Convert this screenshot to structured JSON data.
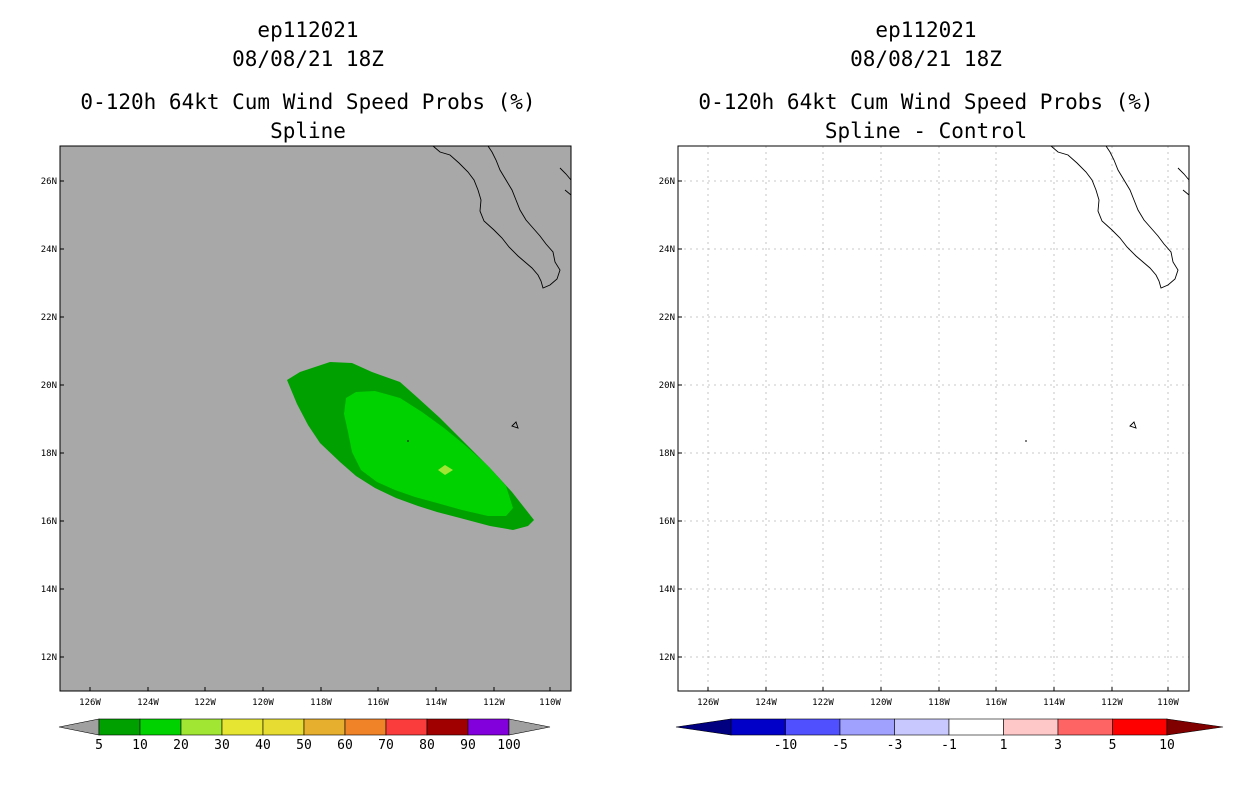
{
  "left_panel": {
    "title_line1": "ep112021",
    "title_line2": "08/08/21 18Z",
    "title_line3": "0-120h 64kt Cum Wind Speed Probs (%)",
    "title_line4": "Spline",
    "background_color": "#a8a8a8",
    "contour_colors": [
      "#00a000",
      "#00d200",
      "#a0e632"
    ],
    "colorbar": {
      "labels": [
        "5",
        "10",
        "20",
        "30",
        "40",
        "50",
        "60",
        "70",
        "80",
        "90",
        "100"
      ],
      "colors": [
        "#00a000",
        "#00d200",
        "#a0e632",
        "#e6e632",
        "#e6dc32",
        "#e6af2d",
        "#f08228",
        "#fa3c3c",
        "#a00000",
        "#8200dc"
      ],
      "end_color": "#a0a0a0"
    }
  },
  "right_panel": {
    "title_line1": "ep112021",
    "title_line2": "08/08/21 18Z",
    "title_line3": "0-120h 64kt Cum Wind Speed Probs (%)",
    "title_line4": "Spline - Control",
    "background_color": "#ffffff",
    "colorbar": {
      "labels": [
        "-10",
        "-5",
        "-3",
        "-1",
        "1",
        "3",
        "5",
        "10"
      ],
      "colors": [
        "#0000c8",
        "#5050ff",
        "#a0a0ff",
        "#c8c8ff",
        "#ffffff",
        "#ffc8c8",
        "#ff6464",
        "#ff0000"
      ],
      "low_end_color": "#000080",
      "high_end_color": "#800000"
    }
  },
  "axes": {
    "lat_labels": [
      "26N",
      "24N",
      "22N",
      "20N",
      "18N",
      "16N",
      "14N",
      "12N"
    ],
    "lon_labels": [
      "126W",
      "124W",
      "122W",
      "120W",
      "118W",
      "116W",
      "114W",
      "112W",
      "110W"
    ]
  }
}
